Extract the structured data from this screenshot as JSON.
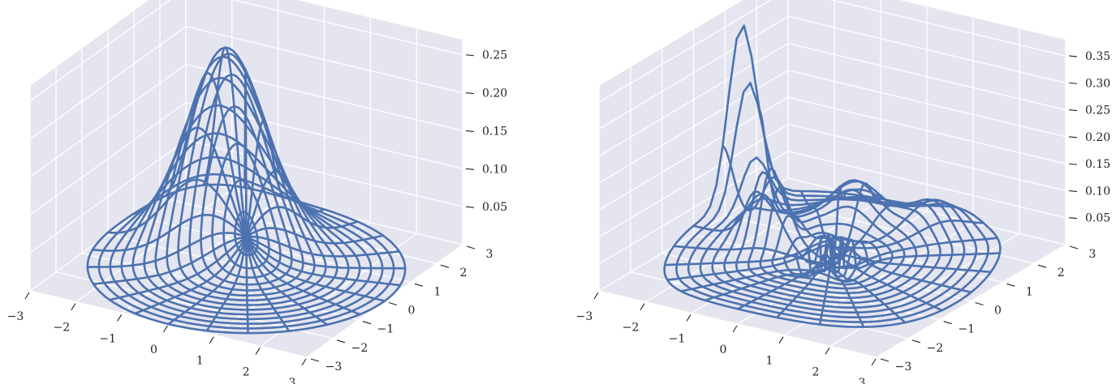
{
  "chart_data": [
    {
      "type": "surface-wireframe",
      "surface": "gaussian-bump",
      "x_ticks": [
        "−3",
        "−2",
        "−1",
        "0",
        "1",
        "2",
        "3"
      ],
      "y_ticks": [
        "−3",
        "−2",
        "−1",
        "0",
        "1",
        "2",
        "3"
      ],
      "z_ticks": [
        "0.05",
        "0.10",
        "0.15",
        "0.20",
        "0.25"
      ],
      "x_range": [
        -3,
        3
      ],
      "y_range": [
        -3,
        3
      ],
      "z_range": [
        0,
        0.27
      ],
      "peak": {
        "x": -1.0,
        "y": 1.0,
        "z": 0.25
      },
      "radius": 3,
      "color": "#4c72b0",
      "grid": true
    },
    {
      "type": "surface-wireframe",
      "surface": "oscillating-ridge",
      "x_ticks": [
        "−3",
        "−2",
        "−1",
        "0",
        "1",
        "2",
        "3"
      ],
      "y_ticks": [
        "−3",
        "−2",
        "−1",
        "0",
        "1",
        "2",
        "3"
      ],
      "z_ticks": [
        "0.05",
        "0.10",
        "0.15",
        "0.20",
        "0.25",
        "0.30",
        "0.35"
      ],
      "x_range": [
        -3,
        3
      ],
      "y_range": [
        -3,
        3
      ],
      "z_range": [
        0,
        0.38
      ],
      "peak": {
        "x": -2.8,
        "y": 1.2,
        "z": 0.37
      },
      "radius": 3,
      "color": "#4c72b0",
      "grid": true
    }
  ]
}
